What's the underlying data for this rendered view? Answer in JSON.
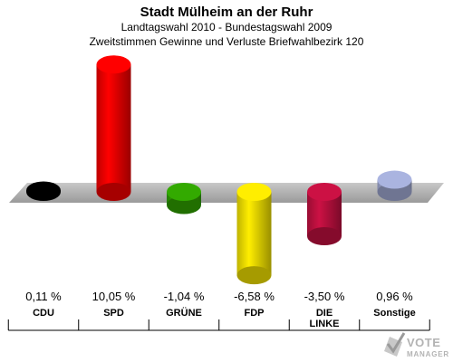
{
  "chart_data": {
    "type": "bar",
    "title": "Stadt Mülheim an der Ruhr",
    "subtitle_lines": [
      "Landtagswahl 2010 - Bundestagswahl 2009",
      "Zweitstimmen Gewinne und Verluste Briefwahlbezirk 120"
    ],
    "categories": [
      [
        "CDU"
      ],
      [
        "SPD"
      ],
      [
        "GRÜNE"
      ],
      [
        "FDP"
      ],
      [
        "DIE",
        "LINKE"
      ],
      [
        "Sonstige"
      ]
    ],
    "values": [
      0.11,
      10.05,
      -1.04,
      -6.58,
      -3.5,
      0.96
    ],
    "value_labels": [
      "0,11 %",
      "10,05 %",
      "-1,04 %",
      "-6,58 %",
      "-3,50 %",
      "0,96 %"
    ],
    "colors": [
      "#000000",
      "#ff0000",
      "#33aa00",
      "#ffee00",
      "#cc1144",
      "#aab4e0"
    ],
    "grid": false,
    "legend": "none"
  },
  "logo": {
    "line1": "VOTE",
    "line2": "MANAGER"
  }
}
